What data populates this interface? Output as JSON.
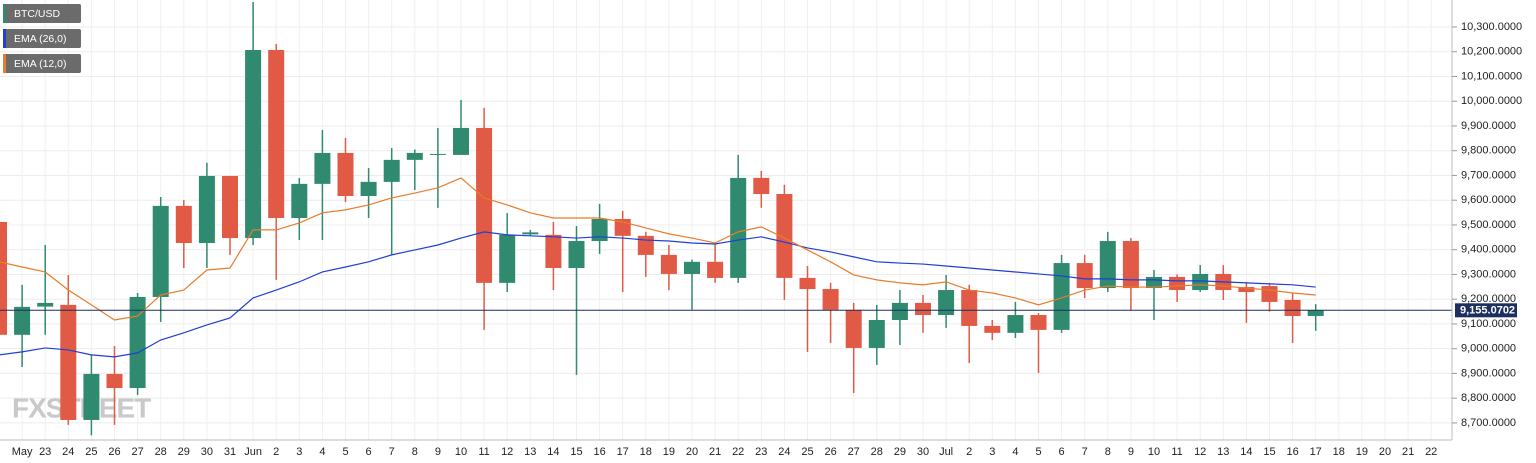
{
  "chart_data": {
    "type": "candlestick",
    "categories": [
      null,
      "May",
      "23",
      "24",
      "25",
      "26",
      "27",
      "28",
      "29",
      "30",
      "31",
      "Jun",
      "2",
      "3",
      "4",
      "5",
      "6",
      "7",
      "8",
      "9",
      "10",
      "11",
      "12",
      "13",
      "14",
      "15",
      "16",
      "17",
      "18",
      "19",
      "20",
      "21",
      "22",
      "23",
      "24",
      "25",
      "26",
      "27",
      "28",
      "29",
      "30",
      "Jul",
      "2",
      "3",
      "4",
      "5",
      "6",
      "7",
      "8",
      "9",
      "10",
      "11",
      "12",
      "13",
      "14",
      "15",
      "16",
      "17",
      "18",
      "19",
      "20",
      "21",
      "22"
    ],
    "ohlc": {
      "name": "BTC/USD",
      "up_color": "#2f8a70",
      "down_color": "#e05a45",
      "open": [
        9512,
        9056,
        9170,
        9177,
        8712,
        8898,
        8841,
        9209,
        9577,
        9427,
        9698,
        9447,
        10207,
        9528,
        9666,
        9791,
        9617,
        9674,
        9763,
        9783,
        9783,
        9892,
        9266,
        9462,
        9460,
        9326,
        9435,
        9524,
        9456,
        9379,
        9302,
        9351,
        9286,
        9690,
        9625,
        9286,
        9241,
        9157,
        9003,
        9116,
        9185,
        9136,
        9237,
        9092,
        9064,
        9136,
        9076,
        9346,
        9245,
        9435,
        9245,
        9290,
        9237,
        9302,
        9249,
        9253,
        9197,
        9132,
        null,
        null,
        null,
        null,
        null
      ],
      "high": [
        9569,
        9258,
        9419,
        9298,
        8975,
        9011,
        9225,
        9613,
        9601,
        9751,
        9698,
        10401,
        10231,
        9690,
        9884,
        9852,
        9730,
        9811,
        9805,
        9892,
        10005,
        9973,
        9548,
        9480,
        9512,
        9496,
        9585,
        9557,
        9472,
        9419,
        9360,
        9427,
        9783,
        9718,
        9662,
        9334,
        9266,
        9185,
        9177,
        9237,
        9217,
        9298,
        9258,
        9116,
        9189,
        9144,
        9379,
        9379,
        9472,
        9447,
        9318,
        9300,
        9338,
        9338,
        9270,
        9266,
        9225,
        9180,
        null,
        null,
        null,
        null,
        null
      ],
      "low": [
        8793,
        8926,
        9056,
        8692,
        8650,
        8692,
        8813,
        9108,
        9326,
        9326,
        9379,
        9419,
        9278,
        9439,
        9439,
        9593,
        9528,
        9379,
        9641,
        9569,
        9783,
        9076,
        9229,
        9455,
        9237,
        8894,
        9383,
        9229,
        9290,
        9237,
        9157,
        9266,
        9266,
        9569,
        9197,
        8987,
        9023,
        8821,
        8934,
        9015,
        9064,
        9084,
        8942,
        9035,
        9043,
        8902,
        9064,
        9205,
        9229,
        9157,
        9116,
        9189,
        9229,
        9197,
        9104,
        9150,
        9023,
        9072,
        null,
        null,
        null,
        null,
        null
      ],
      "close": [
        9056,
        9169,
        9185,
        8712,
        8898,
        8841,
        9209,
        9577,
        9427,
        9698,
        9447,
        10207,
        9528,
        9666,
        9791,
        9617,
        9674,
        9763,
        9791,
        9787,
        9892,
        9266,
        9460,
        9470,
        9326,
        9435,
        9524,
        9456,
        9379,
        9302,
        9351,
        9286,
        9690,
        9625,
        9286,
        9241,
        9157,
        9003,
        9116,
        9185,
        9136,
        9237,
        9092,
        9064,
        9136,
        9076,
        9346,
        9245,
        9435,
        9245,
        9290,
        9237,
        9302,
        9237,
        9229,
        9189,
        9132,
        9155,
        null,
        null,
        null,
        null,
        null
      ]
    },
    "series": [
      {
        "name": "EMA (26,0)",
        "color": "#1f3fd6",
        "values": [
          8975,
          8987,
          9003,
          8995,
          8975,
          8967,
          8983,
          9035,
          9064,
          9096,
          9124,
          9205,
          9237,
          9270,
          9310,
          9330,
          9351,
          9379,
          9399,
          9419,
          9447,
          9472,
          9460,
          9456,
          9452,
          9447,
          9452,
          9447,
          9439,
          9435,
          9427,
          9423,
          9439,
          9452,
          9431,
          9407,
          9391,
          9371,
          9351,
          9346,
          9342,
          9334,
          9326,
          9318,
          9310,
          9302,
          9294,
          9282,
          9282,
          9278,
          9278,
          9274,
          9274,
          9270,
          9266,
          9262,
          9258,
          9249,
          null,
          null,
          null,
          null,
          null
        ]
      },
      {
        "name": "EMA (12,0)",
        "color": "#e87c2b",
        "values": [
          9351,
          9330,
          9310,
          9237,
          9177,
          9116,
          9132,
          9217,
          9237,
          9318,
          9326,
          9480,
          9480,
          9508,
          9549,
          9561,
          9581,
          9609,
          9629,
          9650,
          9690,
          9609,
          9581,
          9549,
          9528,
          9528,
          9528,
          9512,
          9488,
          9464,
          9447,
          9427,
          9472,
          9492,
          9447,
          9399,
          9351,
          9298,
          9278,
          9266,
          9258,
          9270,
          9237,
          9225,
          9205,
          9177,
          9205,
          9237,
          9253,
          9249,
          9249,
          9253,
          9258,
          9253,
          9245,
          9237,
          9225,
          9217,
          null,
          null,
          null,
          null,
          null
        ]
      }
    ],
    "last_price": {
      "value": 9155.0702,
      "label": "9,155.0702",
      "color": "#1c2f5e"
    },
    "ylim": [
      8631,
      10409
    ],
    "yticks": [
      {
        "value": 8700,
        "label": "8,700.0000"
      },
      {
        "value": 8800,
        "label": "8,800.0000"
      },
      {
        "value": 8900,
        "label": "8,900.0000"
      },
      {
        "value": 9000,
        "label": "9,000.0000"
      },
      {
        "value": 9100,
        "label": "9,100.0000"
      },
      {
        "value": 9200,
        "label": "9,200.0000"
      },
      {
        "value": 9300,
        "label": "9,300.0000"
      },
      {
        "value": 9400,
        "label": "9,400.0000"
      },
      {
        "value": 9500,
        "label": "9,500.0000"
      },
      {
        "value": 9600,
        "label": "9,600.0000"
      },
      {
        "value": 9700,
        "label": "9,700.0000"
      },
      {
        "value": 9800,
        "label": "9,800.0000"
      },
      {
        "value": 9900,
        "label": "9,900.0000"
      },
      {
        "value": 10000,
        "label": "10,000.0000"
      },
      {
        "value": 10100,
        "label": "10,100.0000"
      },
      {
        "value": 10200,
        "label": "10,200.0000"
      },
      {
        "value": 10300,
        "label": "10,300.0000"
      }
    ],
    "grid": true,
    "watermark": "FXSTREET"
  }
}
